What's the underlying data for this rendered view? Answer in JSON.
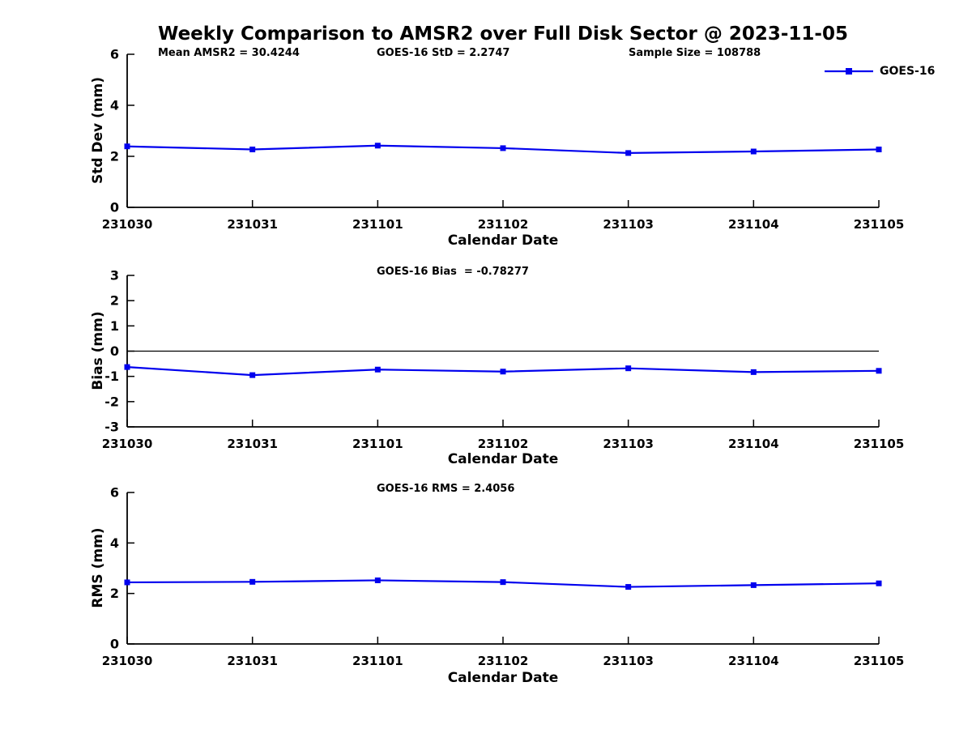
{
  "title": "Weekly Comparison to AMSR2 over Full Disk Sector @ 2023-11-05",
  "legend": {
    "label": "GOES-16",
    "color": "#0000EE"
  },
  "chart_data": [
    {
      "type": "line",
      "name": "std-dev",
      "ylabel": "Std Dev (mm)",
      "xlabel": "Calendar Date",
      "ylim": [
        0,
        6
      ],
      "yticks": [
        0,
        2,
        4,
        6
      ],
      "categories": [
        "231030",
        "231031",
        "231101",
        "231102",
        "231103",
        "231104",
        "231105"
      ],
      "series": [
        {
          "name": "GOES-16",
          "color": "#0000EE",
          "marker": "square",
          "values": [
            2.39,
            2.27,
            2.42,
            2.32,
            2.13,
            2.19,
            2.27
          ]
        }
      ],
      "annotations": [
        "Mean AMSR2 = 30.4244",
        "GOES-16 StD = 2.2747",
        "Sample Size = 108788"
      ],
      "legend_position": "top-right",
      "grid": false,
      "zero_line": false
    },
    {
      "type": "line",
      "name": "bias",
      "ylabel": "Bias (mm)",
      "xlabel": "Calendar Date",
      "ylim": [
        -3,
        3
      ],
      "yticks": [
        -3,
        -2,
        -1,
        0,
        1,
        2,
        3
      ],
      "categories": [
        "231030",
        "231031",
        "231101",
        "231102",
        "231103",
        "231104",
        "231105"
      ],
      "series": [
        {
          "name": "GOES-16",
          "color": "#0000EE",
          "marker": "square",
          "values": [
            -0.63,
            -0.95,
            -0.73,
            -0.81,
            -0.68,
            -0.83,
            -0.78
          ]
        }
      ],
      "annotations": [
        "GOES-16 Bias  = -0.78277"
      ],
      "grid": false,
      "zero_line": true
    },
    {
      "type": "line",
      "name": "rms",
      "ylabel": "RMS (mm)",
      "xlabel": "Calendar Date",
      "ylim": [
        0,
        6
      ],
      "yticks": [
        0,
        2,
        4,
        6
      ],
      "categories": [
        "231030",
        "231031",
        "231101",
        "231102",
        "231103",
        "231104",
        "231105"
      ],
      "series": [
        {
          "name": "GOES-16",
          "color": "#0000EE",
          "marker": "square",
          "values": [
            2.44,
            2.46,
            2.52,
            2.45,
            2.26,
            2.33,
            2.4
          ]
        }
      ],
      "annotations": [
        "GOES-16 RMS = 2.4056"
      ],
      "grid": false,
      "zero_line": false
    }
  ]
}
